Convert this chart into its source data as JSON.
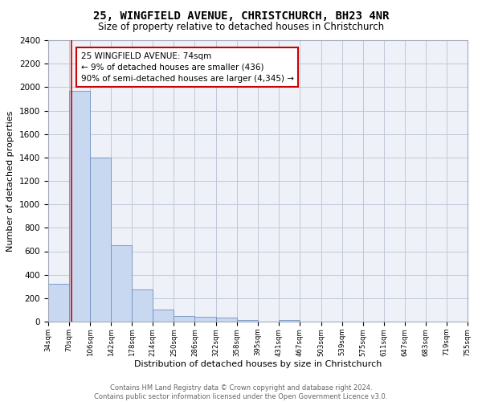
{
  "title": "25, WINGFIELD AVENUE, CHRISTCHURCH, BH23 4NR",
  "subtitle": "Size of property relative to detached houses in Christchurch",
  "xlabel": "Distribution of detached houses by size in Christchurch",
  "ylabel": "Number of detached properties",
  "bar_edges": [
    34,
    70,
    106,
    142,
    178,
    214,
    250,
    286,
    322,
    358,
    395,
    431,
    467,
    503,
    539,
    575,
    611,
    647,
    683,
    719,
    755
  ],
  "bar_heights": [
    325,
    1970,
    1400,
    650,
    275,
    105,
    48,
    42,
    32,
    14,
    0,
    15,
    0,
    0,
    0,
    0,
    0,
    0,
    0,
    0
  ],
  "bar_color": "#c8d8f0",
  "bar_edge_color": "#7090c0",
  "vline_x": 74,
  "vline_color": "#cc0000",
  "annotation_text": "25 WINGFIELD AVENUE: 74sqm\n← 9% of detached houses are smaller (436)\n90% of semi-detached houses are larger (4,345) →",
  "annotation_box_color": "#ffffff",
  "annotation_box_edge": "#cc0000",
  "ylim": [
    0,
    2400
  ],
  "yticks": [
    0,
    200,
    400,
    600,
    800,
    1000,
    1200,
    1400,
    1600,
    1800,
    2000,
    2200,
    2400
  ],
  "xtick_labels": [
    "34sqm",
    "70sqm",
    "106sqm",
    "142sqm",
    "178sqm",
    "214sqm",
    "250sqm",
    "286sqm",
    "322sqm",
    "358sqm",
    "395sqm",
    "431sqm",
    "467sqm",
    "503sqm",
    "539sqm",
    "575sqm",
    "611sqm",
    "647sqm",
    "683sqm",
    "719sqm",
    "755sqm"
  ],
  "footer_text": "Contains HM Land Registry data © Crown copyright and database right 2024.\nContains public sector information licensed under the Open Government Licence v3.0.",
  "grid_color": "#c0c8d8",
  "background_color": "#eef2f8"
}
